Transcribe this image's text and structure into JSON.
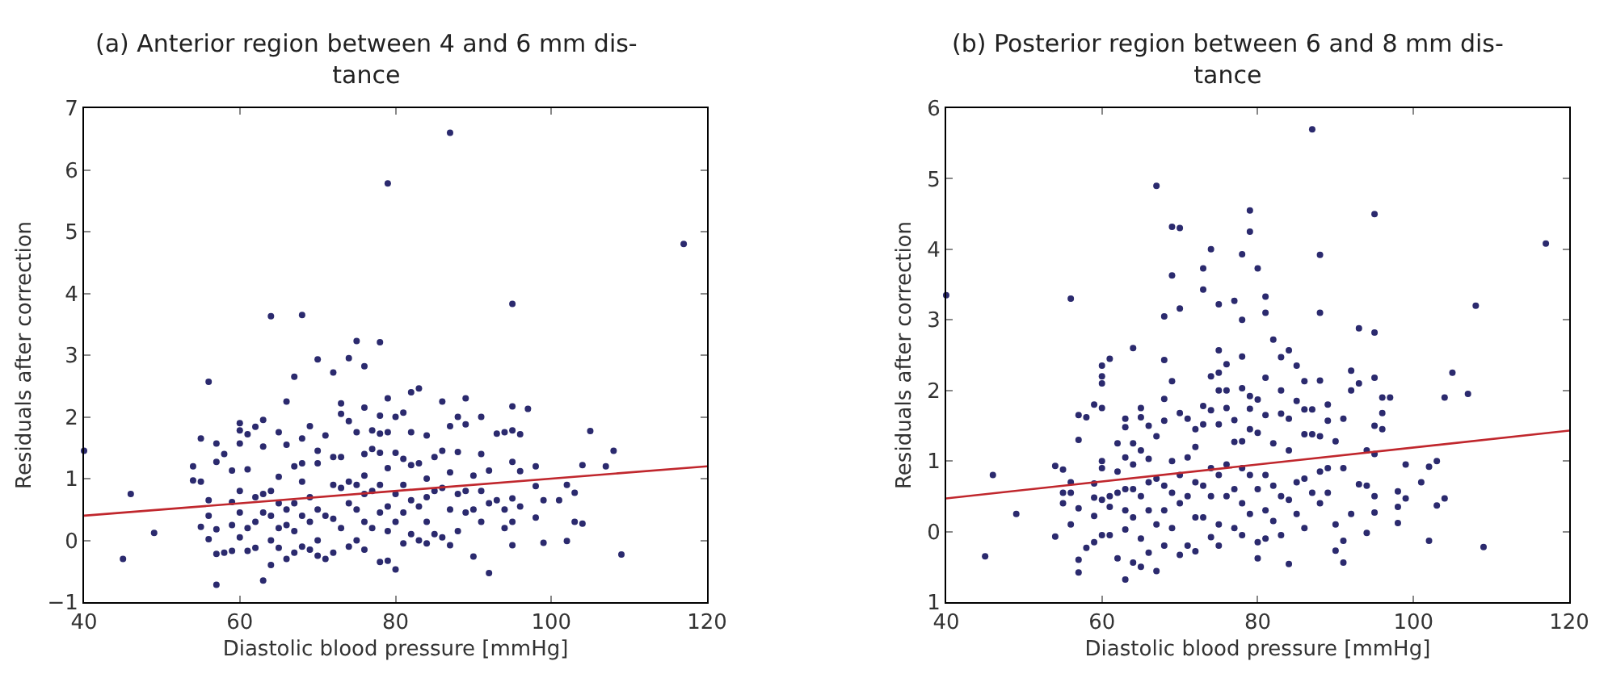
{
  "chart_data": [
    {
      "type": "scatter",
      "title": "(a) Anterior region between 4 and 6 mm dis-\ntance",
      "xlabel": "Diastolic blood pressure [mmHg]",
      "ylabel": "Residuals after correction",
      "xlim": [
        40,
        120
      ],
      "xticks": [
        40,
        60,
        80,
        100,
        120
      ],
      "ylim": [
        -1,
        7
      ],
      "yticks": [
        {
          "value": -1,
          "label": "−1"
        },
        0,
        1,
        2,
        3,
        4,
        5,
        6,
        7
      ],
      "series": [
        {
          "marker": "circle",
          "color": "#2b2a6e",
          "x": [
            40,
            45,
            46,
            49,
            54,
            54,
            55,
            55,
            55,
            56,
            56,
            56,
            56,
            57,
            57,
            57,
            57,
            57,
            58,
            58,
            59,
            59,
            59,
            59,
            60,
            60,
            60,
            60,
            60,
            60,
            61,
            61,
            61,
            61,
            62,
            62,
            62,
            62,
            63,
            63,
            63,
            63,
            63,
            64,
            64,
            64,
            64,
            64,
            65,
            65,
            65,
            65,
            65,
            66,
            66,
            66,
            66,
            66,
            67,
            67,
            67,
            67,
            67,
            68,
            68,
            68,
            68,
            68,
            68,
            69,
            69,
            69,
            69,
            70,
            70,
            70,
            70,
            70,
            70,
            71,
            71,
            71,
            72,
            72,
            72,
            72,
            72,
            73,
            73,
            73,
            73,
            73,
            74,
            74,
            74,
            74,
            74,
            75,
            75,
            75,
            75,
            75,
            76,
            76,
            76,
            76,
            76,
            76,
            76,
            77,
            77,
            77,
            77,
            78,
            78,
            78,
            78,
            78,
            78,
            78,
            79,
            79,
            79,
            79,
            79,
            79,
            79,
            80,
            80,
            80,
            80,
            80,
            81,
            81,
            81,
            81,
            81,
            82,
            82,
            82,
            82,
            82,
            83,
            83,
            83,
            83,
            84,
            84,
            84,
            84,
            84,
            85,
            85,
            85,
            86,
            86,
            86,
            86,
            87,
            87,
            87,
            87,
            87,
            88,
            88,
            88,
            88,
            89,
            89,
            89,
            89,
            90,
            90,
            90,
            91,
            91,
            91,
            91,
            92,
            92,
            92,
            93,
            93,
            94,
            94,
            94,
            95,
            95,
            95,
            95,
            95,
            95,
            95,
            96,
            96,
            96,
            97,
            98,
            98,
            98,
            99,
            99,
            101,
            102,
            102,
            103,
            103,
            104,
            104,
            105,
            107,
            108,
            109,
            117
          ],
          "values": [
            1.45,
            -0.3,
            0.75,
            0.12,
            1.2,
            0.97,
            1.65,
            0.95,
            0.22,
            2.57,
            0.65,
            0.4,
            0.02,
            1.57,
            1.27,
            0.18,
            -0.22,
            -0.72,
            1.4,
            -0.2,
            1.13,
            0.62,
            0.25,
            -0.17,
            1.9,
            1.78,
            1.57,
            0.8,
            0.45,
            0.05,
            1.72,
            1.15,
            0.2,
            -0.17,
            1.84,
            0.7,
            0.3,
            -0.12,
            1.95,
            1.52,
            0.75,
            0.45,
            -0.65,
            3.63,
            0.8,
            0.4,
            0.0,
            -0.4,
            1.75,
            1.03,
            0.6,
            0.2,
            -0.12,
            2.25,
            1.55,
            0.5,
            0.25,
            -0.3,
            2.65,
            1.2,
            0.6,
            0.15,
            -0.2,
            3.65,
            1.65,
            1.25,
            0.95,
            0.4,
            -0.1,
            1.85,
            0.7,
            0.3,
            -0.15,
            2.93,
            1.45,
            1.25,
            0.5,
            0.0,
            -0.25,
            1.7,
            0.4,
            -0.3,
            2.72,
            1.35,
            0.9,
            0.35,
            -0.2,
            2.22,
            2.05,
            1.35,
            0.85,
            0.2,
            2.95,
            1.93,
            0.95,
            0.6,
            -0.1,
            3.23,
            1.75,
            0.9,
            0.5,
            0.0,
            2.82,
            2.15,
            1.4,
            1.05,
            0.75,
            0.3,
            -0.15,
            1.78,
            1.48,
            0.8,
            0.2,
            3.21,
            2.02,
            1.73,
            1.42,
            0.9,
            0.45,
            -0.35,
            5.78,
            2.3,
            1.75,
            1.17,
            0.55,
            0.15,
            -0.33,
            2.0,
            1.42,
            0.75,
            0.3,
            -0.47,
            2.07,
            1.32,
            0.9,
            0.45,
            -0.05,
            2.4,
            1.75,
            1.22,
            0.65,
            0.1,
            2.46,
            1.25,
            0.55,
            0.0,
            1.7,
            1.0,
            0.7,
            0.3,
            -0.05,
            1.35,
            0.8,
            0.1,
            2.25,
            1.45,
            0.85,
            0.05,
            6.6,
            1.85,
            1.1,
            0.5,
            -0.08,
            2.0,
            1.43,
            0.75,
            0.15,
            2.3,
            1.88,
            0.8,
            0.45,
            1.05,
            0.5,
            -0.26,
            2.0,
            1.4,
            0.8,
            0.3,
            1.13,
            0.6,
            -0.53,
            1.73,
            0.65,
            1.75,
            0.5,
            0.2,
            3.83,
            2.17,
            1.78,
            1.27,
            0.68,
            0.3,
            -0.08,
            1.72,
            1.12,
            0.55,
            2.13,
            1.2,
            0.88,
            0.37,
            0.65,
            -0.04,
            0.65,
            0.9,
            -0.01,
            0.77,
            0.3,
            1.22,
            0.27,
            1.77,
            1.2,
            1.45,
            -0.23,
            4.8
          ]
        },
        {
          "type": "line",
          "color": "#c0272d",
          "x": [
            40,
            120
          ],
          "values": [
            0.4,
            1.2
          ]
        }
      ]
    },
    {
      "type": "scatter",
      "title": "(b) Posterior region between 6 and 8 mm dis-\ntance",
      "xlabel": "Diastolic blood pressure [mmHg]",
      "ylabel": "Residuals after correction",
      "xlim": [
        40,
        120
      ],
      "xticks": [
        40,
        60,
        80,
        100,
        120
      ],
      "ylim": [
        -1,
        6
      ],
      "yticks": [
        {
          "value": -1,
          "label": "1"
        },
        0,
        1,
        2,
        3,
        4,
        5,
        6
      ],
      "series": [
        {
          "marker": "circle",
          "color": "#2b2a6e",
          "x": [
            40,
            45,
            46,
            49,
            54,
            54,
            55,
            55,
            55,
            56,
            56,
            56,
            56,
            57,
            57,
            57,
            57,
            57,
            58,
            58,
            59,
            59,
            59,
            59,
            59,
            60,
            60,
            60,
            60,
            60,
            60,
            60,
            60,
            61,
            61,
            61,
            61,
            62,
            62,
            62,
            62,
            63,
            63,
            63,
            63,
            63,
            63,
            63,
            64,
            64,
            64,
            64,
            64,
            64,
            65,
            65,
            65,
            65,
            65,
            65,
            66,
            66,
            66,
            66,
            66,
            67,
            67,
            67,
            67,
            67,
            68,
            68,
            68,
            68,
            68,
            68,
            68,
            69,
            69,
            69,
            69,
            69,
            69,
            70,
            70,
            70,
            70,
            70,
            70,
            71,
            71,
            71,
            71,
            72,
            72,
            72,
            72,
            72,
            73,
            73,
            73,
            73,
            73,
            73,
            74,
            74,
            74,
            74,
            74,
            74,
            75,
            75,
            75,
            75,
            75,
            75,
            75,
            75,
            76,
            76,
            76,
            76,
            76,
            77,
            77,
            77,
            77,
            77,
            78,
            78,
            78,
            78,
            78,
            78,
            78,
            78,
            79,
            79,
            79,
            79,
            79,
            79,
            79,
            80,
            80,
            80,
            80,
            80,
            80,
            81,
            81,
            81,
            81,
            81,
            81,
            81,
            82,
            82,
            82,
            82,
            83,
            83,
            83,
            83,
            83,
            84,
            84,
            84,
            84,
            84,
            85,
            85,
            85,
            85,
            86,
            86,
            86,
            86,
            86,
            87,
            87,
            87,
            87,
            88,
            88,
            88,
            88,
            88,
            88,
            89,
            89,
            89,
            89,
            90,
            90,
            90,
            91,
            91,
            91,
            91,
            92,
            92,
            92,
            93,
            93,
            93,
            94,
            94,
            94,
            95,
            95,
            95,
            95,
            95,
            95,
            95,
            96,
            96,
            96,
            97,
            98,
            98,
            98,
            99,
            99,
            101,
            102,
            102,
            103,
            103,
            104,
            104,
            105,
            107,
            108,
            109,
            117
          ],
          "values": [
            3.35,
            -0.35,
            0.8,
            0.25,
            0.93,
            -0.07,
            0.88,
            0.55,
            0.4,
            3.3,
            0.7,
            0.55,
            0.1,
            1.65,
            1.3,
            0.33,
            -0.4,
            -0.58,
            1.62,
            -0.23,
            1.8,
            0.68,
            0.48,
            0.22,
            -0.15,
            2.35,
            2.2,
            2.1,
            1.75,
            1.0,
            0.9,
            0.45,
            -0.05,
            2.45,
            0.5,
            0.35,
            -0.05,
            1.25,
            0.85,
            0.55,
            -0.38,
            1.6,
            1.48,
            1.05,
            0.6,
            0.3,
            0.03,
            -0.68,
            2.6,
            1.25,
            0.95,
            0.6,
            0.2,
            -0.44,
            1.75,
            1.62,
            1.15,
            0.5,
            -0.1,
            -0.5,
            1.5,
            1.03,
            0.7,
            0.3,
            -0.3,
            4.9,
            1.35,
            0.75,
            0.1,
            -0.56,
            3.05,
            2.43,
            1.88,
            1.57,
            0.65,
            0.3,
            -0.2,
            4.32,
            3.63,
            2.13,
            1.0,
            0.55,
            0.05,
            4.3,
            3.16,
            1.68,
            0.8,
            0.4,
            -0.33,
            1.6,
            1.05,
            0.5,
            -0.2,
            1.45,
            1.2,
            0.7,
            0.2,
            -0.28,
            3.73,
            3.43,
            1.78,
            1.52,
            0.65,
            0.2,
            4.0,
            2.2,
            1.72,
            0.9,
            0.5,
            -0.08,
            3.22,
            2.57,
            2.25,
            2.0,
            1.52,
            0.8,
            0.1,
            -0.2,
            2.37,
            2.0,
            1.75,
            0.95,
            0.5,
            3.27,
            1.58,
            1.27,
            0.6,
            0.05,
            3.93,
            3.0,
            2.48,
            2.03,
            1.28,
            0.9,
            0.4,
            -0.05,
            4.55,
            4.25,
            1.92,
            1.74,
            1.45,
            0.8,
            0.25,
            3.73,
            1.87,
            1.4,
            0.6,
            -0.15,
            -0.38,
            3.33,
            3.1,
            2.18,
            1.65,
            0.8,
            0.3,
            -0.1,
            2.72,
            1.25,
            0.65,
            0.15,
            2.47,
            2.0,
            1.67,
            0.5,
            -0.05,
            2.57,
            1.6,
            1.15,
            0.45,
            -0.46,
            2.35,
            1.85,
            0.7,
            0.25,
            2.13,
            1.73,
            1.38,
            0.75,
            0.05,
            5.7,
            1.73,
            1.38,
            0.55,
            3.92,
            3.1,
            2.14,
            1.35,
            0.85,
            0.4,
            1.8,
            1.57,
            0.9,
            0.55,
            1.28,
            0.1,
            -0.27,
            1.6,
            0.9,
            -0.13,
            -0.44,
            2.28,
            2.0,
            0.25,
            2.88,
            2.1,
            0.67,
            1.15,
            0.65,
            -0.02,
            4.5,
            2.82,
            2.18,
            1.5,
            1.1,
            0.5,
            0.27,
            1.9,
            1.68,
            1.45,
            1.9,
            0.57,
            0.35,
            0.12,
            0.95,
            0.47,
            0.7,
            0.92,
            -0.13,
            1.0,
            0.37,
            1.9,
            0.47,
            2.25,
            1.95,
            3.2,
            -0.22,
            4.08
          ]
        },
        {
          "type": "line",
          "color": "#c0272d",
          "x": [
            40,
            120
          ],
          "values": [
            0.47,
            1.43
          ]
        }
      ]
    }
  ]
}
